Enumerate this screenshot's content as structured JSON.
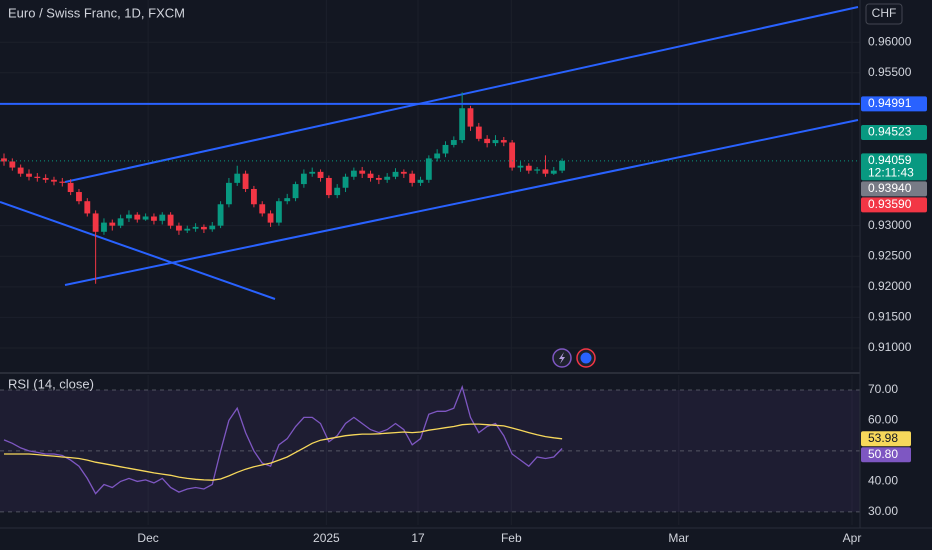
{
  "chart_data": [
    {
      "type": "candlestick",
      "title": "Euro / Swiss Franc, 1D, FXCM",
      "currency": "CHF",
      "up_color": "#089981",
      "down_color": "#f23645",
      "grid": true,
      "xlim": [
        -0.48,
        102.76
      ],
      "xticks": [
        {
          "value": 17.3,
          "label": "Dec"
        },
        {
          "value": 38.7,
          "label": "2025"
        },
        {
          "value": 49.7,
          "label": "17"
        },
        {
          "value": 60.9,
          "label": "Feb"
        },
        {
          "value": 81.0,
          "label": "Mar"
        },
        {
          "value": 101.8,
          "label": "Apr"
        }
      ],
      "ylim": [
        0.9064,
        0.9669
      ],
      "yticks": [
        {
          "value": 0.96,
          "label": "0.96000"
        },
        {
          "value": 0.955,
          "label": "0.95500"
        },
        {
          "value": 0.93,
          "label": "0.93000"
        },
        {
          "value": 0.925,
          "label": "0.92500"
        },
        {
          "value": 0.92,
          "label": "0.92000"
        },
        {
          "value": 0.915,
          "label": "0.91500"
        },
        {
          "value": 0.91,
          "label": "0.91000"
        }
      ],
      "open": [
        0.941,
        0.9405,
        0.9395,
        0.9385,
        0.938,
        0.9378,
        0.9375,
        0.9372,
        0.937,
        0.9355,
        0.934,
        0.932,
        0.929,
        0.9305,
        0.93,
        0.9312,
        0.9318,
        0.931,
        0.9315,
        0.9308,
        0.9318,
        0.93,
        0.9292,
        0.9295,
        0.9298,
        0.9294,
        0.93,
        0.9335,
        0.937,
        0.9385,
        0.936,
        0.9335,
        0.932,
        0.9305,
        0.934,
        0.9345,
        0.9368,
        0.9385,
        0.9388,
        0.9378,
        0.935,
        0.9362,
        0.938,
        0.939,
        0.9385,
        0.9378,
        0.9375,
        0.938,
        0.9388,
        0.9385,
        0.937,
        0.9375,
        0.941,
        0.9418,
        0.9432,
        0.944,
        0.9492,
        0.9462,
        0.9442,
        0.9435,
        0.944,
        0.9436,
        0.9395,
        0.9398,
        0.939,
        0.9392,
        0.9385,
        0.939
      ],
      "high": [
        0.9418,
        0.941,
        0.94,
        0.9392,
        0.9386,
        0.9384,
        0.938,
        0.9378,
        0.9376,
        0.936,
        0.9345,
        0.9325,
        0.9312,
        0.931,
        0.9318,
        0.9325,
        0.9322,
        0.932,
        0.932,
        0.9322,
        0.9322,
        0.9305,
        0.93,
        0.9304,
        0.9302,
        0.9306,
        0.934,
        0.9378,
        0.9398,
        0.939,
        0.9365,
        0.934,
        0.9325,
        0.9345,
        0.9352,
        0.9372,
        0.9392,
        0.9395,
        0.9392,
        0.9382,
        0.9368,
        0.9385,
        0.9395,
        0.9396,
        0.939,
        0.9383,
        0.9386,
        0.9394,
        0.9392,
        0.939,
        0.938,
        0.9415,
        0.9425,
        0.9438,
        0.9446,
        0.9518,
        0.9496,
        0.9468,
        0.9448,
        0.9448,
        0.9445,
        0.944,
        0.9405,
        0.9402,
        0.9396,
        0.9415,
        0.9396,
        0.941
      ],
      "low": [
        0.9398,
        0.939,
        0.938,
        0.9374,
        0.9372,
        0.937,
        0.9366,
        0.9364,
        0.935,
        0.9335,
        0.9315,
        0.9205,
        0.9285,
        0.9292,
        0.9296,
        0.9306,
        0.9305,
        0.9308,
        0.9302,
        0.9302,
        0.9295,
        0.9285,
        0.9288,
        0.929,
        0.9288,
        0.929,
        0.9296,
        0.933,
        0.9365,
        0.9355,
        0.933,
        0.9315,
        0.9298,
        0.93,
        0.9335,
        0.934,
        0.9362,
        0.938,
        0.9372,
        0.9345,
        0.9345,
        0.9355,
        0.9375,
        0.9378,
        0.9372,
        0.9368,
        0.937,
        0.9376,
        0.9378,
        0.9364,
        0.9365,
        0.937,
        0.9405,
        0.9412,
        0.9428,
        0.9435,
        0.9455,
        0.9438,
        0.9428,
        0.943,
        0.943,
        0.939,
        0.9388,
        0.9385,
        0.9385,
        0.938,
        0.9383,
        0.9386
      ],
      "close": [
        0.9405,
        0.9395,
        0.9385,
        0.938,
        0.9378,
        0.9375,
        0.9372,
        0.937,
        0.9355,
        0.934,
        0.932,
        0.929,
        0.9305,
        0.93,
        0.9312,
        0.9318,
        0.931,
        0.9315,
        0.9308,
        0.9318,
        0.93,
        0.9292,
        0.9295,
        0.9298,
        0.9294,
        0.93,
        0.9335,
        0.937,
        0.9385,
        0.936,
        0.9335,
        0.932,
        0.9305,
        0.934,
        0.9345,
        0.9368,
        0.9385,
        0.9388,
        0.9378,
        0.935,
        0.9362,
        0.938,
        0.939,
        0.9385,
        0.9378,
        0.9375,
        0.938,
        0.9388,
        0.9385,
        0.937,
        0.9375,
        0.941,
        0.9418,
        0.9432,
        0.944,
        0.9492,
        0.9462,
        0.9442,
        0.9435,
        0.944,
        0.9436,
        0.9395,
        0.9398,
        0.939,
        0.9392,
        0.9385,
        0.939,
        0.9406
      ],
      "price_labels": [
        {
          "value": 0.94991,
          "label": "0.94991",
          "color": "#2962ff",
          "line": "solid"
        },
        {
          "value": 0.94523,
          "label": "0.94523",
          "color": "#089981"
        },
        {
          "value": 0.94059,
          "label": "0.94059",
          "countdown": "12:11:43",
          "color": "#089981",
          "line": "dotted"
        },
        {
          "value": 0.9394,
          "label": "0.93940",
          "color": "#787b86"
        },
        {
          "value": 0.9359,
          "label": "0.93590",
          "color": "#f23645"
        }
      ]
    },
    {
      "type": "line",
      "title": "RSI (14, close)",
      "ylim": [
        25.7,
        74.9
      ],
      "yticks": [
        {
          "value": 70,
          "label": "70.00"
        },
        {
          "value": 60,
          "label": "60.00"
        },
        {
          "value": 40,
          "label": "40.00"
        },
        {
          "value": 30,
          "label": "30.00"
        }
      ],
      "levels": [
        30,
        50,
        70
      ],
      "band_color": "#7e57c2",
      "series": [
        {
          "color": "#7e57c2",
          "values": [
            53.6,
            52.5,
            51,
            50,
            49.5,
            49,
            49,
            48.5,
            47,
            45,
            41,
            36,
            39,
            38,
            40,
            41,
            40,
            40.5,
            39.5,
            41,
            38,
            36.5,
            37.5,
            38,
            37.5,
            39,
            50,
            60,
            64,
            56,
            50,
            46,
            45,
            52,
            54,
            58,
            61,
            61,
            59,
            53,
            55,
            59,
            61,
            59,
            57,
            56,
            57,
            59,
            57,
            52,
            54,
            62,
            63,
            63,
            64,
            71,
            61,
            56,
            58,
            59,
            55,
            49,
            47,
            45,
            48,
            47.5,
            48,
            50.8
          ],
          "value_label": "50.80"
        },
        {
          "color": "#f7d85b",
          "values": [
            49,
            49,
            49,
            49,
            48.8,
            48.5,
            48.3,
            48,
            47.8,
            47.5,
            47,
            46.3,
            45.8,
            45.3,
            44.8,
            44.3,
            43.8,
            43.3,
            42.8,
            42.4,
            42,
            41.4,
            41,
            40.7,
            40.5,
            40.4,
            40.8,
            41.8,
            43,
            44,
            44.8,
            45.4,
            46,
            47,
            48,
            49.5,
            51,
            52.5,
            53.5,
            54,
            54.5,
            55,
            55.3,
            55.5,
            55.5,
            55.6,
            55.8,
            56,
            56.2,
            56,
            56.2,
            56.8,
            57.2,
            57.6,
            58,
            58.6,
            58.8,
            58.8,
            58.6,
            58.4,
            58.2,
            57.5,
            56.8,
            56,
            55.3,
            54.7,
            54.3,
            53.98
          ],
          "value_label": "53.98"
        }
      ]
    }
  ]
}
